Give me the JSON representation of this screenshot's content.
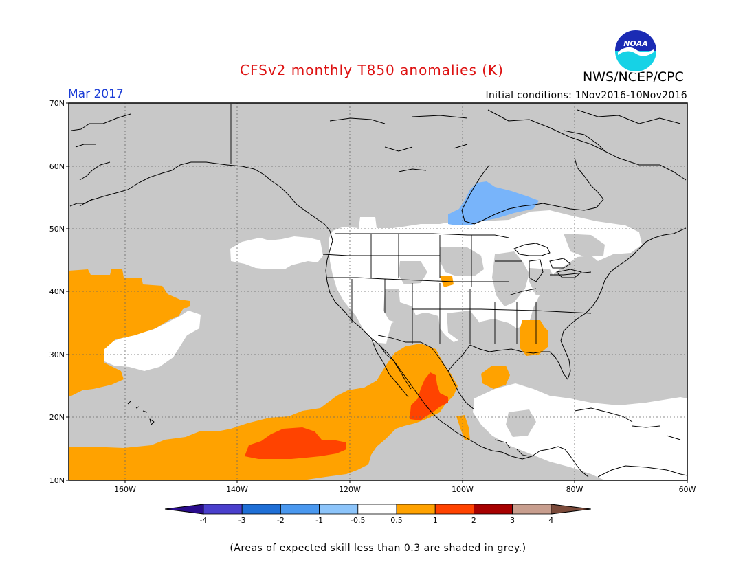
{
  "title": "CFSv2 monthly T850 anomalies (K)",
  "agency": "NWS/NCEP/CPC",
  "logo_text": "NOAA",
  "month_label": "Mar 2017",
  "initial_conditions": "Initial conditions: 1Nov2016-10Nov2016",
  "lat_labels": [
    "70N",
    "60N",
    "50N",
    "40N",
    "30N",
    "20N",
    "10N"
  ],
  "lon_labels": [
    "160W",
    "140W",
    "120W",
    "100W",
    "80W",
    "60W"
  ],
  "colorbar": {
    "colors": [
      "#2a0c8c",
      "#4a3fcc",
      "#1f6fd6",
      "#4a98ef",
      "#8cc4fa",
      "#ffffff",
      "#ffa200",
      "#ff4300",
      "#a70000",
      "#c89e8e",
      "#7b4a3a"
    ],
    "labels": [
      "-4",
      "-3",
      "-2",
      "-1",
      "-0.5",
      "0.5",
      "1",
      "2",
      "3",
      "4"
    ]
  },
  "skill_note": "(Areas of expected skill less than 0.3 are shaded in grey.)",
  "legend_categories": {
    "grey": "#c8c8c8",
    "white": "#ffffff",
    "orange": "#ffa200",
    "red": "#ff4300",
    "lightblue": "#78b4fa"
  }
}
